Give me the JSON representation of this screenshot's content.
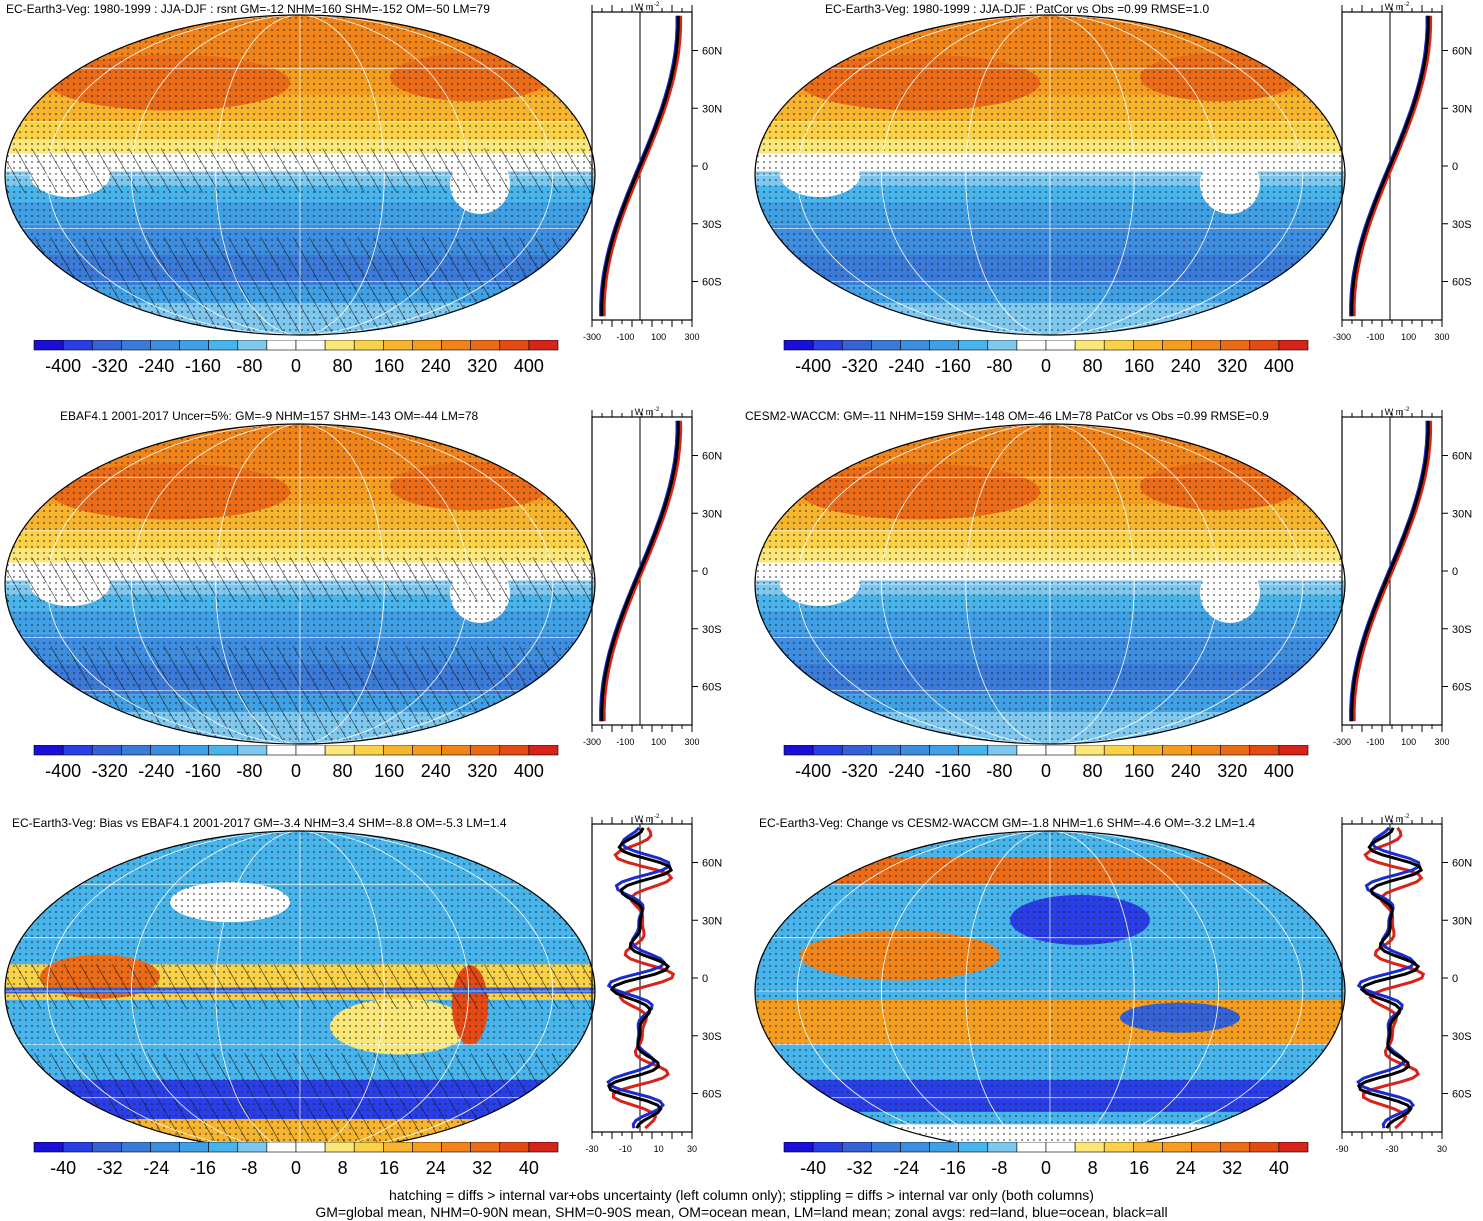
{
  "colors": {
    "scale": [
      "#1a0fd8",
      "#2a3ee8",
      "#3562d6",
      "#3a7ad8",
      "#3d8ee0",
      "#3fa0e6",
      "#47b4ec",
      "#7ec8f0",
      "#ffffff",
      "#ffffff",
      "#fbe77a",
      "#fbd247",
      "#f7b52e",
      "#f59d1f",
      "#f08419",
      "#ec6b17",
      "#e64a14",
      "#d8231a"
    ],
    "land": "#d8231a",
    "ocean": "#1a2bd0",
    "all": "#000000"
  },
  "panels": [
    {
      "title": "EC-Earth3-Veg: 1980-1999 : JJA-DJF : rsnt GM=-12 NHM=160 SHM=-152 OM=-50 LM=79",
      "map_kind": "seasonal",
      "hatching": true,
      "units": "W m",
      "units_sup": "-2",
      "lat_labels": [
        "60N",
        "30N",
        "0",
        "30S",
        "60S"
      ],
      "zonal_ticks": [
        "-300",
        "-100",
        "100",
        "300"
      ],
      "colorbar_labels": [
        "-400",
        "-320",
        "-240",
        "-160",
        "-80",
        "0",
        "80",
        "160",
        "240",
        "320",
        "400"
      ]
    },
    {
      "title": "EC-Earth3-Veg: 1980-1999 : JJA-DJF : PatCor vs Obs =0.99 RMSE=1.0",
      "map_kind": "seasonal",
      "hatching": false,
      "units": "W m",
      "units_sup": "-2",
      "lat_labels": [
        "60N",
        "30N",
        "0",
        "30S",
        "60S"
      ],
      "zonal_ticks": [
        "-300",
        "-100",
        "100",
        "300"
      ],
      "colorbar_labels": [
        "-400",
        "-320",
        "-240",
        "-160",
        "-80",
        "0",
        "80",
        "160",
        "240",
        "320",
        "400"
      ]
    },
    {
      "title": "EBAF4.1 2001-2017 Uncer=5%: GM=-9 NHM=157 SHM=-143 OM=-44 LM=78",
      "map_kind": "seasonal",
      "hatching": true,
      "units": "W m",
      "units_sup": "-2",
      "lat_labels": [
        "60N",
        "30N",
        "0",
        "30S",
        "60S"
      ],
      "zonal_ticks": [
        "-300",
        "-100",
        "100",
        "300"
      ],
      "colorbar_labels": [
        "-400",
        "-320",
        "-240",
        "-160",
        "-80",
        "0",
        "80",
        "160",
        "240",
        "320",
        "400"
      ]
    },
    {
      "title": "CESM2-WACCM: GM=-11 NHM=159 SHM=-148 OM=-46 LM=78 PatCor vs Obs =0.99 RMSE=0.9",
      "map_kind": "seasonal",
      "hatching": false,
      "units": "W m",
      "units_sup": "-2",
      "lat_labels": [
        "60N",
        "30N",
        "0",
        "30S",
        "60S"
      ],
      "zonal_ticks": [
        "-300",
        "-100",
        "100",
        "300"
      ],
      "colorbar_labels": [
        "-400",
        "-320",
        "-240",
        "-160",
        "-80",
        "0",
        "80",
        "160",
        "240",
        "320",
        "400"
      ]
    },
    {
      "title": "EC-Earth3-Veg: Bias vs EBAF4.1 2001-2017 GM=-3.4 NHM=3.4 SHM=-8.8 OM=-5.3 LM=1.4",
      "map_kind": "bias",
      "hatching": true,
      "units": "W m",
      "units_sup": "-2",
      "lat_labels": [
        "60N",
        "30N",
        "0",
        "30S",
        "60S"
      ],
      "zonal_ticks": [
        "-30",
        "-10",
        "10",
        "30"
      ],
      "colorbar_labels": [
        "-40",
        "-32",
        "-24",
        "-16",
        "-8",
        "0",
        "8",
        "16",
        "24",
        "32",
        "40"
      ]
    },
    {
      "title": "EC-Earth3-Veg: Change vs CESM2-WACCM GM=-1.8 NHM=1.6 SHM=-4.6 OM=-3.2 LM=1.4",
      "map_kind": "change",
      "hatching": false,
      "units": "W m",
      "units_sup": "-2",
      "lat_labels": [
        "60N",
        "30N",
        "0",
        "30S",
        "60S"
      ],
      "zonal_ticks": [
        "-90",
        "-30",
        "30"
      ],
      "colorbar_labels": [
        "-40",
        "-32",
        "-24",
        "-16",
        "-8",
        "0",
        "8",
        "16",
        "24",
        "32",
        "40"
      ]
    }
  ],
  "footer": {
    "line1": "hatching = diffs > internal var+obs uncertainty (left column only); stippling = diffs > internal var only (both columns)",
    "line2": "GM=global mean, NHM=0-90N mean, SHM=0-90S mean, OM=ocean mean, LM=land mean; zonal avgs: red=land, blue=ocean, black=all"
  }
}
